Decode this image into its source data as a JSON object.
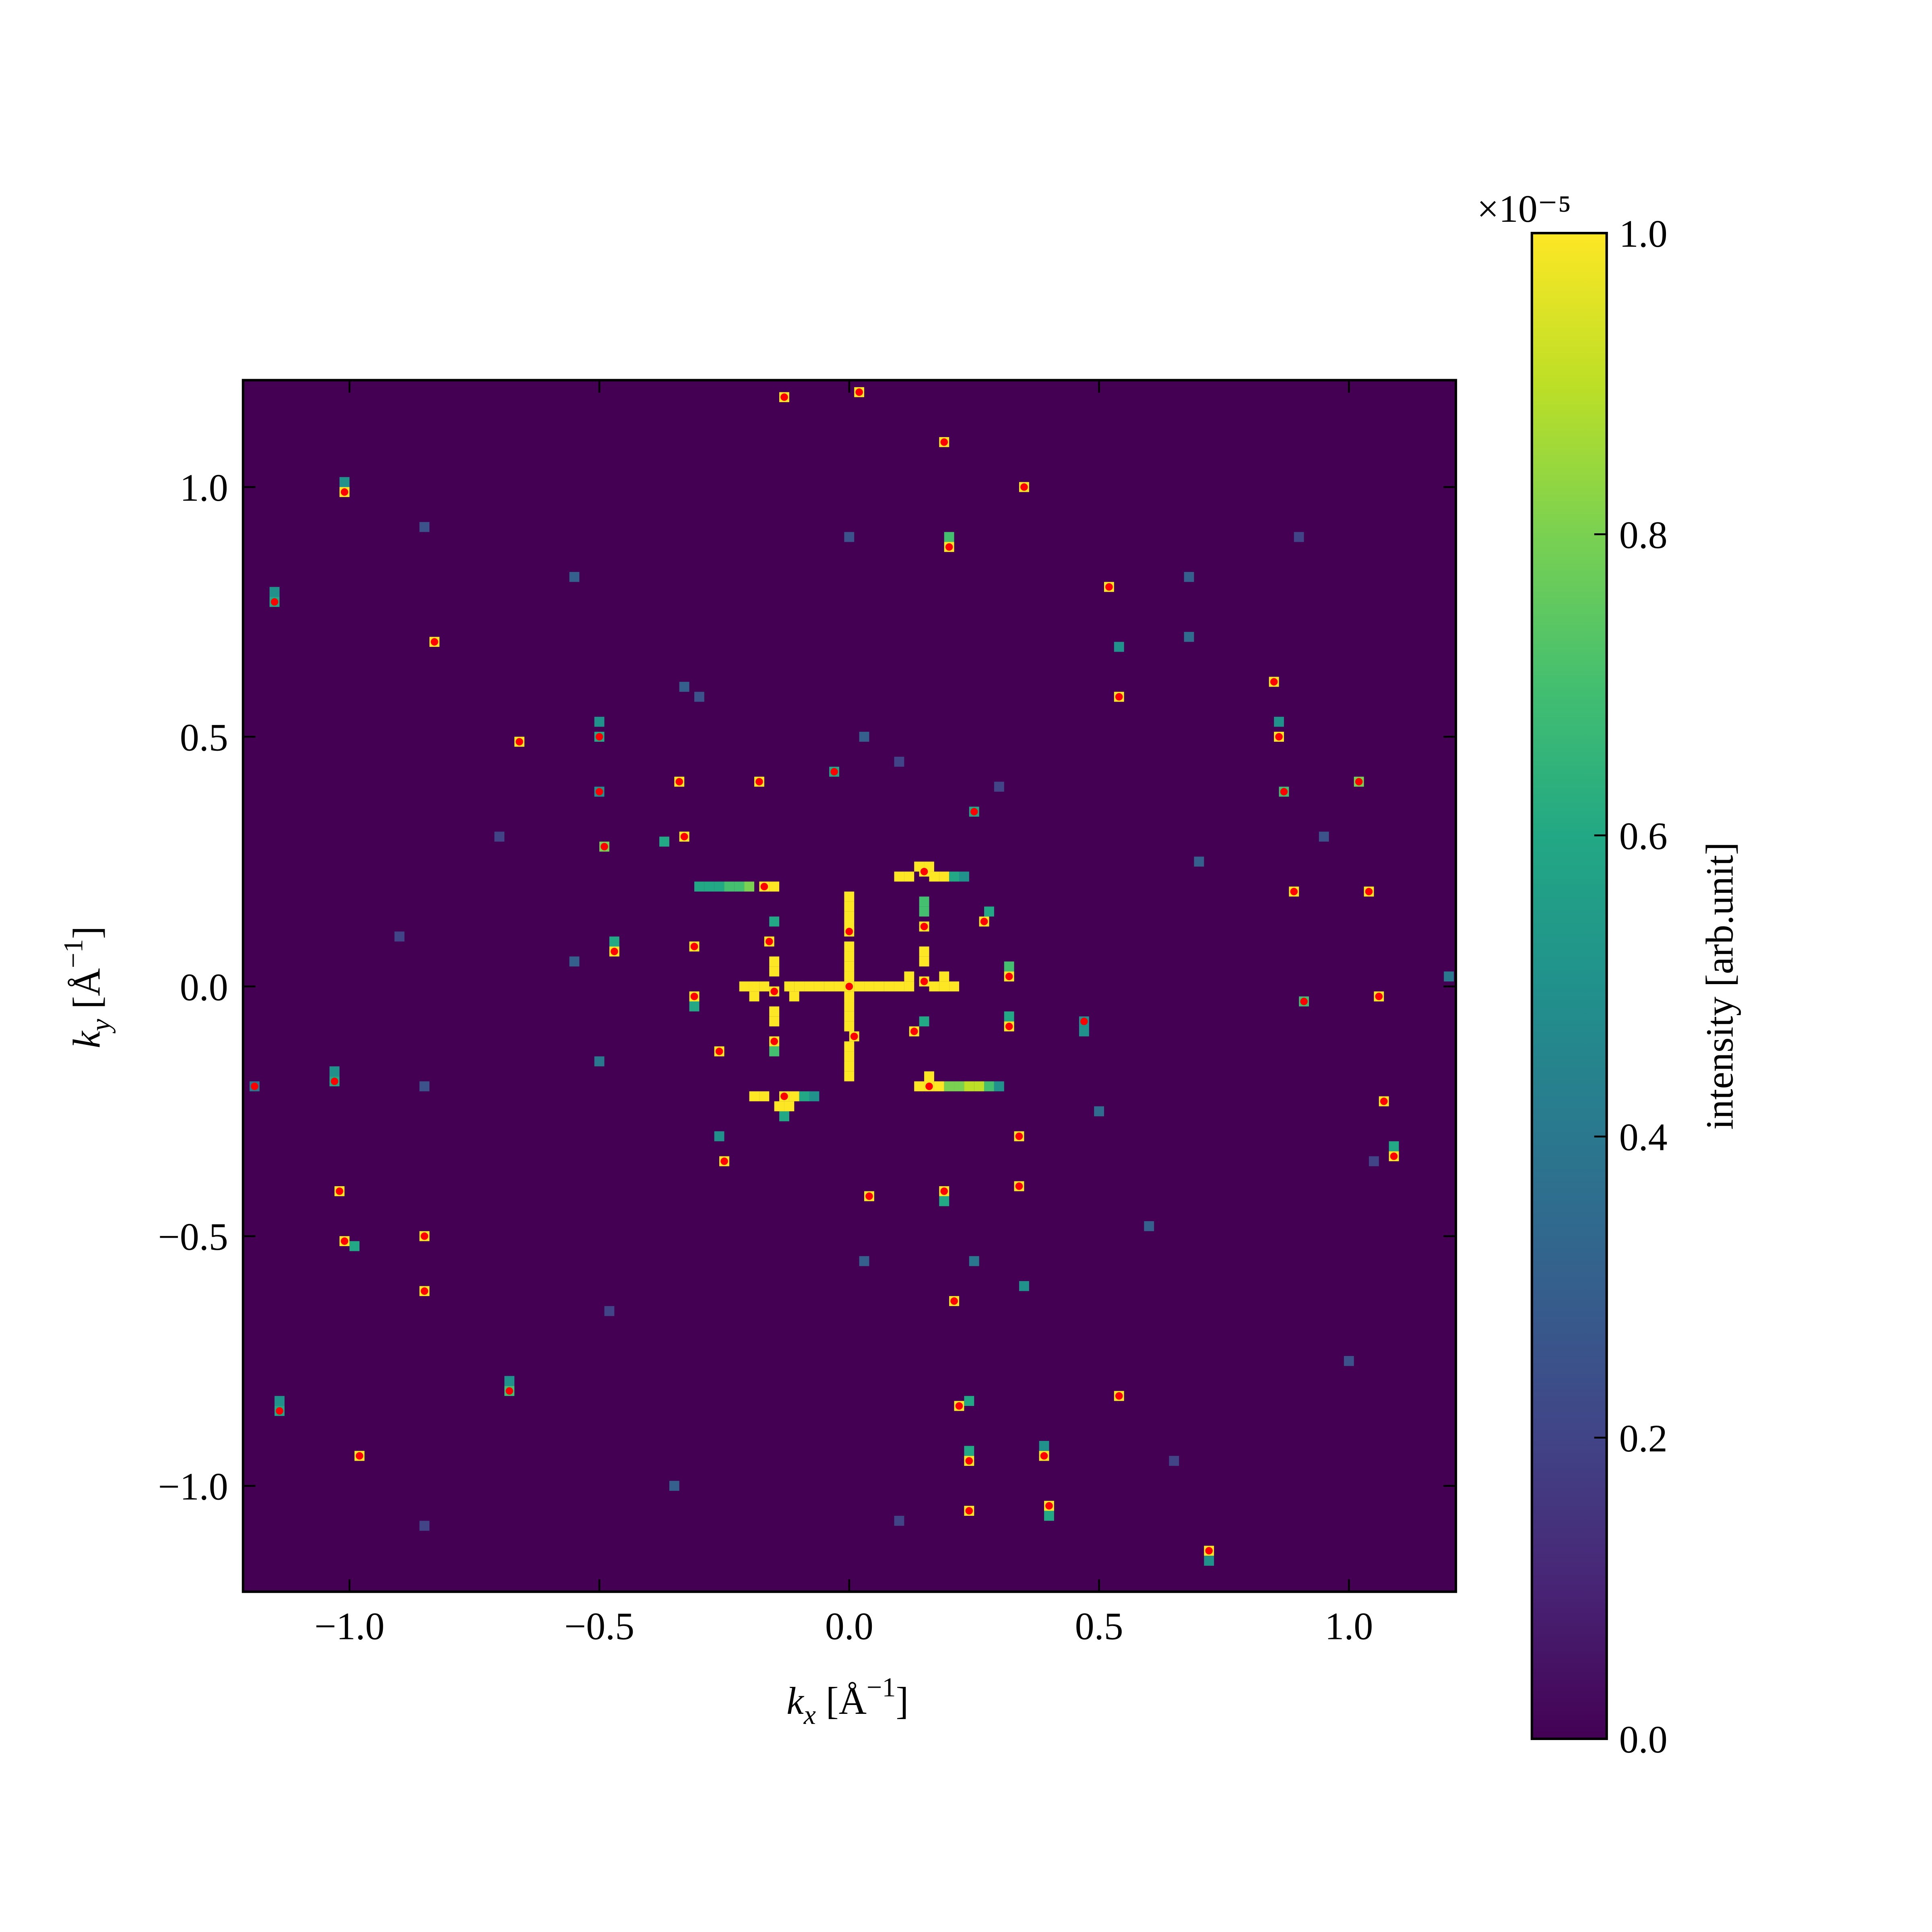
{
  "chart_data": {
    "type": "heatmap",
    "xlabel": [
      "k",
      "x",
      "[Å",
      "−1",
      "]"
    ],
    "ylabel": [
      "k",
      "y",
      "[Å",
      "−1",
      "]"
    ],
    "xlim": [
      -1.213,
      1.214
    ],
    "ylim": [
      -1.212,
      1.214
    ],
    "xticks": [
      {
        "value": -1.0,
        "label": "−1.0"
      },
      {
        "value": -0.5,
        "label": "−0.5"
      },
      {
        "value": 0.0,
        "label": "0.0"
      },
      0.5,
      {
        "value": 1.0,
        "label": "1.0"
      }
    ],
    "yticks": [
      {
        "value": -1.0,
        "label": "−1.0"
      },
      {
        "value": -0.5,
        "label": "−0.5"
      },
      {
        "value": 0.0,
        "label": "0.0"
      },
      0.5,
      {
        "value": 1.0,
        "label": "1.0"
      }
    ],
    "colormap": "viridis",
    "clim": [
      0,
      1
    ],
    "cticks": [
      {
        "value": 0,
        "label": "0.0"
      },
      0.2,
      0.4,
      0.6,
      0.8,
      {
        "value": 1,
        "label": "1.0"
      }
    ],
    "colorbar_label": "intensity [arb.unit]",
    "colorbar_offset": "×10⁻⁵",
    "cells": [
      [
        -0.13,
        1.18,
        1
      ],
      [
        0.02,
        1.19,
        1
      ],
      [
        0.19,
        1.09,
        1
      ],
      [
        0.35,
        1.0,
        1
      ],
      [
        -1.01,
        0.99,
        1
      ],
      [
        0.2,
        0.88,
        1
      ],
      [
        -1.15,
        0.77,
        0.6
      ],
      [
        0.52,
        0.8,
        1
      ],
      [
        -0.83,
        0.69,
        1
      ],
      [
        0.54,
        0.58,
        1
      ],
      [
        0.85,
        0.61,
        1
      ],
      [
        -0.66,
        0.49,
        1
      ],
      [
        -0.5,
        0.5,
        0.6
      ],
      [
        0.86,
        0.5,
        1
      ],
      [
        -0.34,
        0.41,
        1
      ],
      [
        -0.18,
        0.41,
        1
      ],
      [
        -0.03,
        0.43,
        0.6
      ],
      [
        0.87,
        0.39,
        0.7
      ],
      [
        1.02,
        0.41,
        0.8
      ],
      [
        -0.5,
        0.39,
        0.5
      ],
      [
        0.25,
        0.35,
        0.6
      ],
      [
        -0.33,
        0.3,
        1
      ],
      [
        -0.49,
        0.28,
        0.8
      ],
      [
        0.15,
        0.23,
        1
      ],
      [
        -0.17,
        0.2,
        1
      ],
      [
        0.89,
        0.19,
        1
      ],
      [
        1.04,
        0.19,
        1
      ],
      [
        0.27,
        0.13,
        1
      ],
      [
        0.15,
        0.12,
        1
      ],
      [
        -0.16,
        0.09,
        1
      ],
      [
        0.0,
        0.11,
        1
      ],
      [
        -0.31,
        0.08,
        1
      ],
      [
        -0.47,
        0.07,
        1
      ],
      [
        0.32,
        0.02,
        1
      ],
      [
        0.15,
        0.01,
        1
      ],
      [
        -0.15,
        -0.01,
        1
      ],
      [
        0.0,
        0.0,
        1
      ],
      [
        -0.31,
        -0.02,
        1
      ],
      [
        0.91,
        -0.03,
        0.7
      ],
      [
        1.06,
        -0.02,
        1
      ],
      [
        0.32,
        -0.08,
        1
      ],
      [
        0.47,
        -0.07,
        0.5
      ],
      [
        0.13,
        -0.09,
        1
      ],
      [
        0.01,
        -0.1,
        1
      ],
      [
        -0.15,
        -0.11,
        1
      ],
      [
        -0.26,
        -0.13,
        1
      ],
      [
        -1.03,
        -0.19,
        0.6
      ],
      [
        -1.19,
        -0.2,
        0.4
      ],
      [
        0.16,
        -0.2,
        1
      ],
      [
        -0.13,
        -0.22,
        1
      ],
      [
        1.07,
        -0.23,
        1
      ],
      [
        0.34,
        -0.3,
        1
      ],
      [
        -0.25,
        -0.35,
        1
      ],
      [
        1.09,
        -0.34,
        1
      ],
      [
        -1.02,
        -0.41,
        1
      ],
      [
        0.04,
        -0.42,
        1
      ],
      [
        0.19,
        -0.41,
        1
      ],
      [
        0.34,
        -0.4,
        1
      ],
      [
        -1.01,
        -0.51,
        1
      ],
      [
        -0.85,
        -0.5,
        1
      ],
      [
        -0.85,
        -0.61,
        1
      ],
      [
        0.21,
        -0.63,
        1
      ],
      [
        -0.68,
        -0.81,
        0.7
      ],
      [
        0.54,
        -0.82,
        1
      ],
      [
        -1.14,
        -0.85,
        0.6
      ],
      [
        0.22,
        -0.84,
        1
      ],
      [
        -0.98,
        -0.94,
        1
      ],
      [
        0.24,
        -0.95,
        1
      ],
      [
        0.39,
        -0.94,
        1
      ],
      [
        0.24,
        -1.05,
        1
      ],
      [
        0.4,
        -1.04,
        1
      ],
      [
        0.72,
        -1.13,
        1
      ],
      [
        0,
        0.02,
        1
      ],
      [
        0,
        0.04,
        1
      ],
      [
        0,
        0.06,
        1
      ],
      [
        0,
        0.08,
        1
      ],
      [
        0,
        0.12,
        1
      ],
      [
        0,
        0.14,
        1
      ],
      [
        0,
        0.16,
        1
      ],
      [
        0,
        0.18,
        1
      ],
      [
        0,
        -0.02,
        1
      ],
      [
        0,
        -0.04,
        1
      ],
      [
        0,
        -0.06,
        1
      ],
      [
        0,
        -0.08,
        1
      ],
      [
        0,
        -0.12,
        1
      ],
      [
        0,
        -0.14,
        1
      ],
      [
        0,
        -0.16,
        1
      ],
      [
        0,
        -0.18,
        1
      ],
      [
        0.02,
        0,
        1
      ],
      [
        0.04,
        0,
        1
      ],
      [
        0.06,
        0,
        1
      ],
      [
        0.08,
        0,
        1
      ],
      [
        0.1,
        0,
        1
      ],
      [
        0.12,
        0,
        1
      ],
      [
        0.17,
        0,
        1
      ],
      [
        0.19,
        0,
        1
      ],
      [
        0.21,
        0,
        1
      ],
      [
        -0.02,
        0,
        1
      ],
      [
        -0.04,
        0,
        1
      ],
      [
        -0.06,
        0,
        1
      ],
      [
        -0.08,
        0,
        1
      ],
      [
        -0.1,
        0,
        1
      ],
      [
        -0.12,
        0,
        1
      ],
      [
        -0.17,
        0,
        1
      ],
      [
        -0.19,
        0,
        1
      ],
      [
        -0.21,
        0,
        1
      ],
      [
        -0.3,
        0.2,
        0.6
      ],
      [
        -0.28,
        0.2,
        0.6
      ],
      [
        -0.26,
        0.2,
        0.6
      ],
      [
        -0.24,
        0.2,
        0.7
      ],
      [
        -0.22,
        0.2,
        0.7
      ],
      [
        -0.2,
        0.2,
        0.8
      ],
      [
        -0.15,
        0.2,
        1
      ],
      [
        0.1,
        0.22,
        1
      ],
      [
        0.12,
        0.22,
        1
      ],
      [
        0.17,
        0.22,
        1
      ],
      [
        0.19,
        0.22,
        1
      ],
      [
        0.21,
        0.22,
        0.6
      ],
      [
        0.23,
        0.22,
        0.5
      ],
      [
        0.14,
        0.24,
        1
      ],
      [
        0.16,
        0.24,
        1
      ],
      [
        0.14,
        -0.2,
        1
      ],
      [
        0.18,
        -0.2,
        1
      ],
      [
        0.2,
        -0.2,
        0.8
      ],
      [
        0.22,
        -0.2,
        0.8
      ],
      [
        0.24,
        -0.2,
        0.9
      ],
      [
        0.26,
        -0.2,
        0.9
      ],
      [
        0.28,
        -0.2,
        0.7
      ],
      [
        0.3,
        -0.2,
        0.5
      ],
      [
        0.16,
        -0.18,
        1
      ],
      [
        -0.19,
        -0.22,
        1
      ],
      [
        -0.17,
        -0.22,
        1
      ],
      [
        -0.11,
        -0.22,
        1
      ],
      [
        -0.09,
        -0.22,
        0.6
      ],
      [
        -0.07,
        -0.22,
        0.5
      ],
      [
        -0.14,
        -0.24,
        1
      ],
      [
        -0.12,
        -0.24,
        1
      ],
      [
        -0.13,
        -0.26,
        0.6
      ],
      [
        -0.15,
        0.03,
        1
      ],
      [
        -0.15,
        0.05,
        1
      ],
      [
        -0.15,
        -0.05,
        1
      ],
      [
        -0.15,
        -0.07,
        1
      ],
      [
        -0.15,
        0.13,
        0.6
      ],
      [
        0.15,
        0.05,
        1
      ],
      [
        0.15,
        0.07,
        1
      ],
      [
        0.15,
        0.15,
        0.7
      ],
      [
        0.15,
        0.17,
        0.7
      ],
      [
        0.12,
        0.02,
        1
      ],
      [
        0.19,
        0.02,
        1
      ],
      [
        -0.19,
        -0.02,
        1
      ],
      [
        -0.11,
        -0.02,
        1
      ],
      [
        0.54,
        0.68,
        0.5
      ],
      [
        0.2,
        0.9,
        0.7
      ],
      [
        -0.5,
        0.53,
        0.5
      ],
      [
        0.86,
        0.53,
        0.5
      ],
      [
        -1.15,
        0.79,
        0.5
      ],
      [
        -1.01,
        1.01,
        0.5
      ],
      [
        -0.37,
        0.29,
        0.6
      ],
      [
        -0.47,
        0.09,
        0.6
      ],
      [
        0.28,
        0.15,
        0.6
      ],
      [
        -0.31,
        -0.04,
        0.6
      ],
      [
        0.32,
        -0.06,
        0.6
      ],
      [
        0.47,
        -0.09,
        0.5
      ],
      [
        0.32,
        0.04,
        0.7
      ],
      [
        0.19,
        -0.43,
        0.6
      ],
      [
        1.09,
        -0.32,
        0.6
      ],
      [
        -0.99,
        -0.52,
        0.6
      ],
      [
        -1.03,
        -0.17,
        0.5
      ],
      [
        0.24,
        -0.83,
        0.6
      ],
      [
        0.24,
        -0.93,
        0.6
      ],
      [
        0.4,
        -1.06,
        0.6
      ],
      [
        0.39,
        -0.92,
        0.5
      ],
      [
        0.72,
        -1.15,
        0.5
      ],
      [
        -0.68,
        -0.79,
        0.5
      ],
      [
        -1.14,
        -0.83,
        0.5
      ],
      [
        -0.26,
        -0.3,
        0.5
      ],
      [
        0.15,
        -0.07,
        0.6
      ],
      [
        -0.15,
        -0.13,
        0.7
      ],
      [
        -0.3,
        0.58,
        0.25
      ],
      [
        0.1,
        0.45,
        0.2
      ],
      [
        -0.55,
        0.82,
        0.3
      ],
      [
        0.68,
        0.82,
        0.3
      ],
      [
        0.68,
        0.7,
        0.35
      ],
      [
        0.95,
        0.3,
        0.25
      ],
      [
        0.3,
        0.4,
        0.2
      ],
      [
        -0.7,
        0.3,
        0.2
      ],
      [
        -0.9,
        0.1,
        0.2
      ],
      [
        -0.85,
        -0.2,
        0.25
      ],
      [
        0.5,
        -0.25,
        0.35
      ],
      [
        0.6,
        -0.48,
        0.3
      ],
      [
        -0.48,
        -0.65,
        0.2
      ],
      [
        0.65,
        -0.95,
        0.2
      ],
      [
        -0.35,
        -1.0,
        0.3
      ],
      [
        0.1,
        -1.07,
        0.2
      ],
      [
        -0.85,
        -1.08,
        0.2
      ],
      [
        1.0,
        -0.75,
        0.25
      ],
      [
        0.9,
        0.9,
        0.2
      ],
      [
        -0.85,
        0.92,
        0.25
      ],
      [
        0.0,
        0.9,
        0.25
      ],
      [
        0.03,
        0.5,
        0.3
      ],
      [
        0.03,
        -0.55,
        0.3
      ],
      [
        -0.5,
        -0.15,
        0.4
      ],
      [
        -0.55,
        0.05,
        0.3
      ],
      [
        0.7,
        0.25,
        0.3
      ],
      [
        -0.33,
        0.6,
        0.3
      ],
      [
        0.25,
        -0.55,
        0.4
      ],
      [
        0.35,
        -0.6,
        0.5
      ],
      [
        1.2,
        0.02,
        0.4
      ],
      [
        1.05,
        -0.35,
        0.2
      ]
    ],
    "peaks": {
      "color": "#ff0000",
      "points": [
        [
          -0.13,
          1.18
        ],
        [
          0.02,
          1.19
        ],
        [
          0.19,
          1.09
        ],
        [
          0.35,
          1.0
        ],
        [
          -1.01,
          0.99
        ],
        [
          0.2,
          0.88
        ],
        [
          -1.15,
          0.77
        ],
        [
          0.52,
          0.8
        ],
        [
          -0.83,
          0.69
        ],
        [
          0.54,
          0.58
        ],
        [
          0.85,
          0.61
        ],
        [
          -0.66,
          0.49
        ],
        [
          -0.5,
          0.5
        ],
        [
          0.86,
          0.5
        ],
        [
          -0.34,
          0.41
        ],
        [
          -0.18,
          0.41
        ],
        [
          -0.03,
          0.43
        ],
        [
          0.87,
          0.39
        ],
        [
          1.02,
          0.41
        ],
        [
          -0.5,
          0.39
        ],
        [
          0.25,
          0.35
        ],
        [
          -0.33,
          0.3
        ],
        [
          -0.49,
          0.28
        ],
        [
          0.15,
          0.23
        ],
        [
          -0.17,
          0.2
        ],
        [
          0.89,
          0.19
        ],
        [
          1.04,
          0.19
        ],
        [
          0.27,
          0.13
        ],
        [
          0.15,
          0.12
        ],
        [
          -0.16,
          0.09
        ],
        [
          0.0,
          0.11
        ],
        [
          -0.31,
          0.08
        ],
        [
          -0.47,
          0.07
        ],
        [
          0.32,
          0.02
        ],
        [
          0.15,
          0.01
        ],
        [
          -0.15,
          -0.01
        ],
        [
          0.0,
          0.0
        ],
        [
          -0.31,
          -0.02
        ],
        [
          0.91,
          -0.03
        ],
        [
          1.06,
          -0.02
        ],
        [
          0.32,
          -0.08
        ],
        [
          0.47,
          -0.07
        ],
        [
          0.13,
          -0.09
        ],
        [
          0.01,
          -0.1
        ],
        [
          -0.15,
          -0.11
        ],
        [
          -0.26,
          -0.13
        ],
        [
          -1.03,
          -0.19
        ],
        [
          -1.19,
          -0.2
        ],
        [
          0.16,
          -0.2
        ],
        [
          -0.13,
          -0.22
        ],
        [
          1.07,
          -0.23
        ],
        [
          0.34,
          -0.3
        ],
        [
          -0.25,
          -0.35
        ],
        [
          1.09,
          -0.34
        ],
        [
          -1.02,
          -0.41
        ],
        [
          0.04,
          -0.42
        ],
        [
          0.19,
          -0.41
        ],
        [
          0.34,
          -0.4
        ],
        [
          -1.01,
          -0.51
        ],
        [
          -0.85,
          -0.5
        ],
        [
          -0.85,
          -0.61
        ],
        [
          0.21,
          -0.63
        ],
        [
          -0.68,
          -0.81
        ],
        [
          0.54,
          -0.82
        ],
        [
          -1.14,
          -0.85
        ],
        [
          0.22,
          -0.84
        ],
        [
          -0.98,
          -0.94
        ],
        [
          0.24,
          -0.95
        ],
        [
          0.39,
          -0.94
        ],
        [
          0.24,
          -1.05
        ],
        [
          0.4,
          -1.04
        ],
        [
          0.72,
          -1.13
        ]
      ]
    }
  }
}
